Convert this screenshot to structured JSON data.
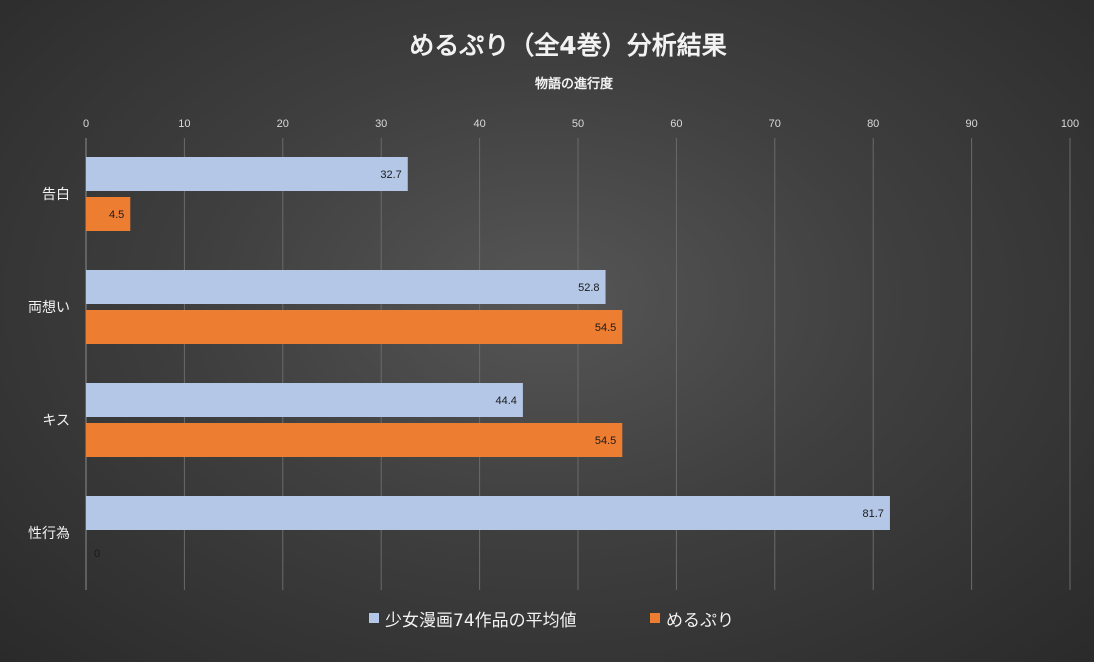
{
  "colors": {
    "series_0": "#b4c7e7",
    "series_1": "#ed7d31"
  },
  "chart_data": {
    "type": "bar",
    "orientation": "horizontal",
    "title": "めるぷり（全4巻）分析結果",
    "subtitle": "物語の進行度",
    "categories": [
      "告白",
      "両想い",
      "キス",
      "性行為"
    ],
    "series": [
      {
        "name": "少女漫画74作品の平均値",
        "values": [
          32.7,
          52.8,
          44.4,
          81.7
        ],
        "labels": [
          "32.7",
          "52.8",
          "44.4",
          "81.7"
        ]
      },
      {
        "name": "めるぷり",
        "values": [
          4.5,
          54.5,
          54.5,
          0
        ],
        "labels": [
          "4.5",
          "54.5",
          "54.5",
          "0"
        ]
      }
    ],
    "xlim": [
      0,
      100
    ],
    "xticks": [
      "0",
      "10",
      "20",
      "30",
      "40",
      "50",
      "60",
      "70",
      "80",
      "90",
      "100"
    ],
    "axis_position": "top",
    "grid": true,
    "legend_position": "bottom"
  }
}
